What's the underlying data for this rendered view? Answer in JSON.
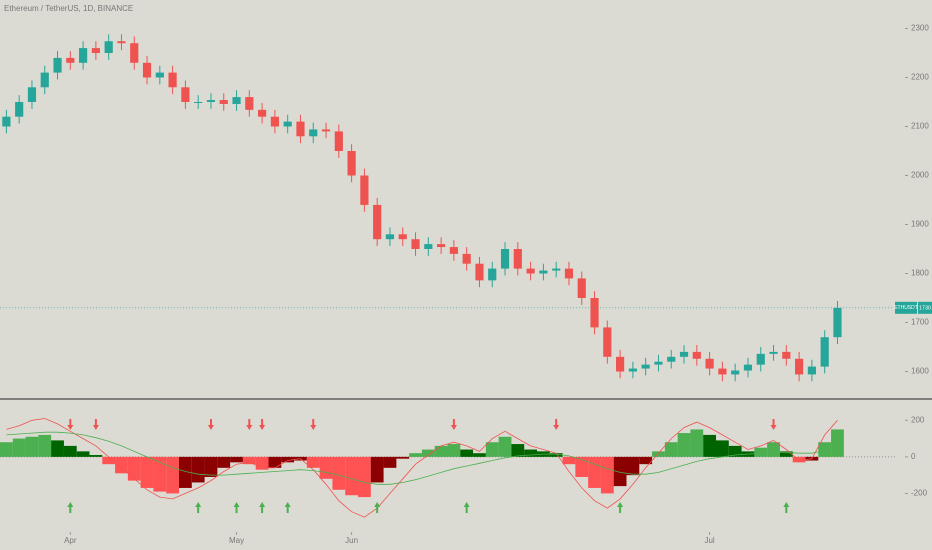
{
  "chart_data": [
    {
      "type": "candlestick",
      "title": "Ethereum / TetherUS, 1D, BINANCE",
      "symbol": "ETHUSDT",
      "up_color": "#26a69a",
      "down_color": "#ef5350",
      "grid": false,
      "last_price_line": true,
      "ylim": [
        1550,
        2350
      ],
      "yticks": [
        1600,
        1700,
        1800,
        1900,
        2000,
        2100,
        2200,
        2300
      ],
      "xlim": [
        -0.5,
        69.5
      ],
      "xticks": [
        {
          "value": 5,
          "label": "Apr"
        },
        {
          "value": 18,
          "label": "May"
        },
        {
          "value": 27,
          "label": "Jun"
        },
        {
          "value": 55,
          "label": "Jul"
        }
      ],
      "open": [
        2100,
        2120,
        2150,
        2180,
        2210,
        2240,
        2230,
        2260,
        2250,
        2274,
        2270,
        2230,
        2200,
        2210,
        2180,
        2150,
        2150,
        2154,
        2146,
        2160,
        2134,
        2120,
        2100,
        2110,
        2080,
        2094,
        2090,
        2050,
        2000,
        1940,
        1870,
        1880,
        1870,
        1850,
        1860,
        1854,
        1840,
        1820,
        1786,
        1810,
        1850,
        1810,
        1800,
        1806,
        1810,
        1790,
        1750,
        1690,
        1630,
        1600,
        1606,
        1614,
        1620,
        1630,
        1640,
        1626,
        1606,
        1594,
        1602,
        1614,
        1636,
        1640,
        1626,
        1594,
        1610,
        1670
      ],
      "high": [
        2134,
        2164,
        2194,
        2224,
        2254,
        2254,
        2274,
        2274,
        2288,
        2288,
        2284,
        2244,
        2224,
        2224,
        2194,
        2164,
        2168,
        2168,
        2174,
        2174,
        2148,
        2134,
        2124,
        2124,
        2108,
        2108,
        2104,
        2064,
        2014,
        1954,
        1894,
        1894,
        1884,
        1874,
        1874,
        1868,
        1854,
        1834,
        1824,
        1864,
        1864,
        1824,
        1820,
        1824,
        1824,
        1804,
        1764,
        1704,
        1644,
        1620,
        1628,
        1634,
        1644,
        1654,
        1654,
        1640,
        1620,
        1616,
        1628,
        1650,
        1654,
        1654,
        1640,
        1624,
        1684,
        1744
      ],
      "low": [
        2086,
        2106,
        2136,
        2166,
        2196,
        2216,
        2216,
        2236,
        2236,
        2256,
        2216,
        2186,
        2186,
        2166,
        2136,
        2136,
        2136,
        2132,
        2132,
        2120,
        2106,
        2086,
        2086,
        2066,
        2066,
        2076,
        2036,
        1986,
        1926,
        1856,
        1856,
        1856,
        1836,
        1836,
        1840,
        1826,
        1806,
        1772,
        1772,
        1796,
        1796,
        1786,
        1786,
        1792,
        1776,
        1736,
        1676,
        1616,
        1586,
        1586,
        1592,
        1600,
        1606,
        1616,
        1612,
        1592,
        1580,
        1580,
        1588,
        1600,
        1622,
        1612,
        1580,
        1580,
        1596,
        1656
      ],
      "close": [
        2120,
        2150,
        2180,
        2210,
        2240,
        2230,
        2260,
        2250,
        2274,
        2270,
        2230,
        2200,
        2210,
        2180,
        2150,
        2150,
        2154,
        2146,
        2160,
        2134,
        2120,
        2100,
        2110,
        2080,
        2094,
        2090,
        2050,
        2000,
        1940,
        1870,
        1880,
        1870,
        1850,
        1860,
        1854,
        1840,
        1820,
        1786,
        1810,
        1850,
        1810,
        1800,
        1806,
        1810,
        1790,
        1750,
        1690,
        1630,
        1600,
        1606,
        1614,
        1620,
        1630,
        1640,
        1626,
        1606,
        1594,
        1602,
        1614,
        1636,
        1640,
        1626,
        1594,
        1610,
        1670,
        1730
      ]
    },
    {
      "type": "histogram-oscillator",
      "ylim": [
        -400,
        300
      ],
      "yticks": [
        200,
        0,
        -200
      ],
      "colors": {
        "up_rising": "#4caf50",
        "up_falling": "#006400",
        "down_falling": "#ff5252",
        "down_rising": "#8b0000"
      },
      "values": [
        80,
        100,
        110,
        120,
        90,
        60,
        30,
        10,
        -40,
        -90,
        -130,
        -170,
        -190,
        -200,
        -170,
        -140,
        -110,
        -60,
        -30,
        -40,
        -70,
        -60,
        -30,
        -20,
        -60,
        -120,
        -180,
        -210,
        -220,
        -140,
        -60,
        -10,
        20,
        40,
        60,
        70,
        40,
        20,
        80,
        110,
        70,
        40,
        30,
        20,
        -40,
        -110,
        -170,
        -200,
        -160,
        -100,
        -40,
        30,
        80,
        130,
        150,
        120,
        90,
        60,
        30,
        50,
        80,
        30,
        -30,
        -20,
        80,
        150
      ],
      "series": [
        {
          "color": "#ef5350",
          "values": [
            150,
            170,
            200,
            210,
            180,
            140,
            100,
            60,
            0,
            -60,
            -120,
            -180,
            -220,
            -230,
            -200,
            -170,
            -130,
            -80,
            -40,
            -30,
            -60,
            -60,
            -20,
            -10,
            -70,
            -150,
            -240,
            -300,
            -330,
            -280,
            -200,
            -120,
            -40,
            10,
            60,
            80,
            60,
            30,
            100,
            140,
            100,
            60,
            40,
            20,
            -80,
            -170,
            -240,
            -280,
            -230,
            -150,
            -60,
            20,
            100,
            160,
            190,
            160,
            120,
            80,
            40,
            60,
            90,
            40,
            -20,
            -10,
            120,
            200
          ]
        },
        {
          "color": "#4caf50",
          "values": [
            120,
            125,
            130,
            135,
            135,
            130,
            120,
            105,
            85,
            60,
            30,
            0,
            -30,
            -60,
            -80,
            -95,
            -100,
            -100,
            -95,
            -90,
            -85,
            -80,
            -75,
            -70,
            -75,
            -85,
            -100,
            -120,
            -140,
            -150,
            -150,
            -140,
            -125,
            -105,
            -85,
            -65,
            -50,
            -35,
            -20,
            -5,
            5,
            10,
            15,
            15,
            5,
            -15,
            -40,
            -65,
            -85,
            -95,
            -95,
            -85,
            -65,
            -45,
            -25,
            -10,
            0,
            10,
            15,
            20,
            25,
            25,
            20,
            20,
            35,
            55
          ]
        }
      ],
      "sell_signals": [
        5,
        7,
        16,
        19,
        20,
        24,
        35,
        43,
        60
      ],
      "sell_color": "#ef5350",
      "buy_signals": [
        5,
        15,
        18,
        20,
        22,
        29,
        36,
        48,
        61
      ],
      "buy_color": "#4caf50"
    }
  ]
}
